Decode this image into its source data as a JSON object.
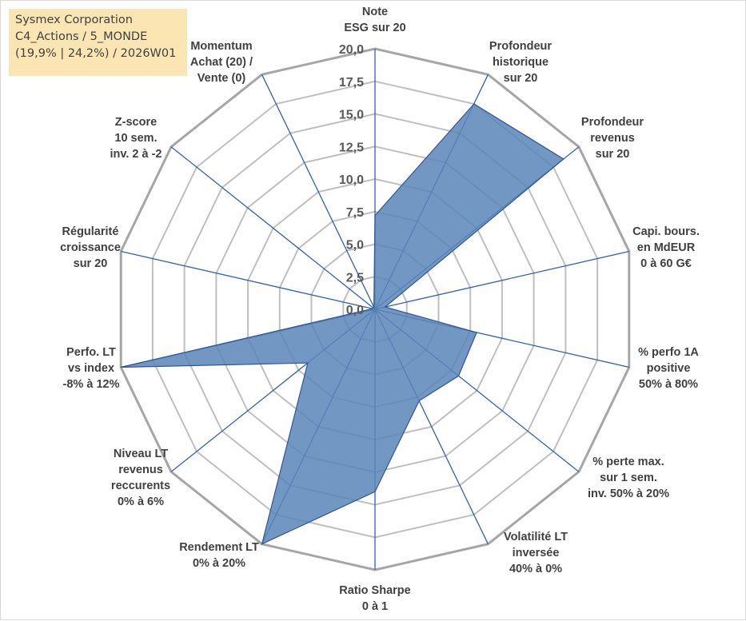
{
  "info": {
    "company": "Sysmex Corporation",
    "portfolio": "C4_Actions / 5_MONDE",
    "stats": "(19,9% | 24,2%) / 2026W01"
  },
  "colors": {
    "fill": "#5b85b9",
    "stroke": "#2f5597",
    "axis": "#2f62b3",
    "grid": "#bfbfbf",
    "grid_outer": "#a6a6a6",
    "info_bg": "#fbe6b3"
  },
  "chart_data": {
    "type": "radar",
    "r_min": 0,
    "r_max": 20,
    "ticks": [
      "0,0",
      "2,5",
      "5,0",
      "7,5",
      "10,0",
      "12,5",
      "15,0",
      "17,5",
      "20,0"
    ],
    "tick_values": [
      0,
      2.5,
      5,
      7.5,
      10,
      12.5,
      15,
      17.5,
      20
    ],
    "grid": true,
    "categories": [
      {
        "lines": [
          "Note",
          "ESG sur 20"
        ]
      },
      {
        "lines": [
          "Profondeur",
          "historique",
          "sur 20"
        ]
      },
      {
        "lines": [
          "Profondeur",
          "revenus",
          "sur 20"
        ]
      },
      {
        "lines": [
          "Capi. bours.",
          "en MdEUR",
          "0 à 60 G€"
        ]
      },
      {
        "lines": [
          "% perfo 1A",
          "positive",
          "50% à 80%"
        ]
      },
      {
        "lines": [
          "% perte max.",
          "sur 1 sem.",
          "inv. 50% à 20%"
        ]
      },
      {
        "lines": [
          "Volatilité LT",
          "inversée",
          "40% à 0%"
        ]
      },
      {
        "lines": [
          "Ratio Sharpe",
          "0 à 1"
        ]
      },
      {
        "lines": [
          "Rendement LT",
          "0% à 20%"
        ]
      },
      {
        "lines": [
          "Niveau LT",
          "revenus",
          "reccurents",
          "0% à 6%"
        ]
      },
      {
        "lines": [
          "Perfo. LT",
          "vs index",
          "-8% à 12%"
        ]
      },
      {
        "lines": [
          "Régularité",
          "croissance",
          "sur 20"
        ]
      },
      {
        "lines": [
          "Z-score",
          "10 sem.",
          "inv. 2 à -2"
        ]
      },
      {
        "lines": [
          "Momentum",
          "Achat (20) /",
          "Vente (0)"
        ]
      }
    ],
    "series": [
      {
        "values": [
          7.2,
          17.5,
          18.5,
          0.8,
          8.0,
          8.2,
          7.8,
          14.0,
          20.0,
          6.6,
          20.0,
          0.2,
          0.2,
          0.2
        ]
      }
    ]
  }
}
